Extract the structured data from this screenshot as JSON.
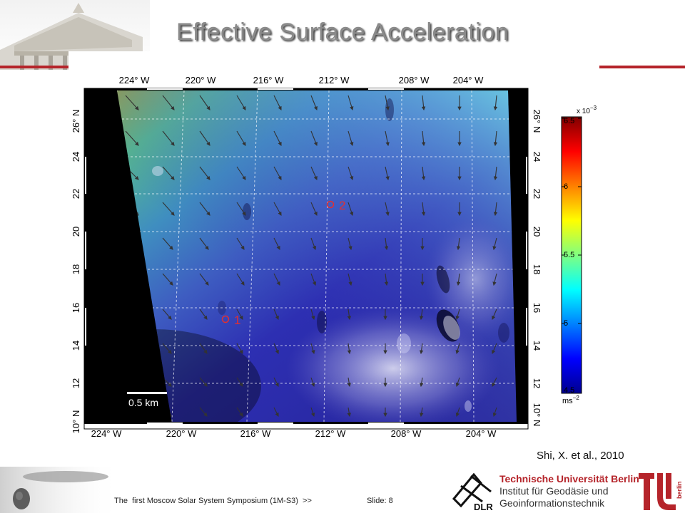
{
  "slide": {
    "title": "Effective Surface Acceleration",
    "citation": "Shi, X. et al., 2010",
    "footer": "The  first Moscow Solar System Symposium (1M-S3)  >>",
    "slide_number": "Slide: 8"
  },
  "figure": {
    "lon_ticks": [
      "224° W",
      "220° W",
      "216° W",
      "212° W",
      "208° W",
      "204° W"
    ],
    "lat_ticks": [
      "10° N",
      "12",
      "14",
      "16",
      "18",
      "20",
      "22",
      "24",
      "26° N"
    ],
    "scale_bar": "0.5 km",
    "sites": [
      {
        "label": "1",
        "lon": 217.5,
        "lat": 15.3
      },
      {
        "label": "2",
        "lon": 212.0,
        "lat": 21.6
      }
    ],
    "colorbar": {
      "exponent": "x 10",
      "exponent_power": "−3",
      "unit": "ms",
      "unit_power": "−2",
      "min": 4.5,
      "max": 6.5,
      "tick_labels": [
        "6.5",
        "6",
        "5.5",
        "5",
        "4.5"
      ],
      "colormap": [
        "#00008f",
        "#0000ff",
        "#0080ff",
        "#00ffff",
        "#80ff80",
        "#ffff00",
        "#ff8000",
        "#ff0000",
        "#800000"
      ]
    }
  },
  "branding": {
    "institution": "Technische Universität Berlin",
    "department_line1": "Institut für Geodäsie und",
    "department_line2": "Geoinformationstechnik",
    "dlr": "DLR",
    "tu_text": "berlin"
  },
  "colors": {
    "accent_red": "#b5242a",
    "title_gray": "#8a8a8a"
  }
}
